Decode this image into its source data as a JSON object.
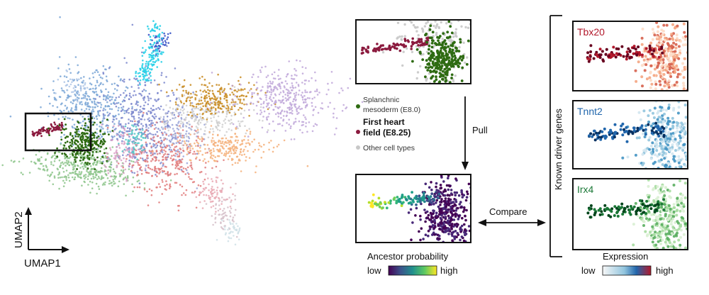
{
  "umap": {
    "x_axis_label": "UMAP1",
    "y_axis_label": "UMAP2"
  },
  "legend": {
    "items": [
      {
        "label": "Splanchnic mesoderm (E8.0)",
        "color": "#2e6b12"
      },
      {
        "label_line1": "First heart",
        "label_line2": "field (E8.25)",
        "color": "#8b1a3e",
        "bold": true
      },
      {
        "label": "Other cell types",
        "color": "#c8c8c8"
      }
    ]
  },
  "arrows": {
    "pull_label": "Pull",
    "compare_label": "Compare"
  },
  "ancestor_panel": {
    "title": "Ancestor probability",
    "low": "low",
    "high": "high"
  },
  "driver_genes": {
    "section_label": "Known driver genes",
    "genes": [
      {
        "name": "Tbx20",
        "color": "#b2182b"
      },
      {
        "name": "Tnnt2",
        "color": "#2166ac"
      },
      {
        "name": "Irx4",
        "color": "#1b7837"
      }
    ],
    "expression_title": "Expression",
    "low": "low",
    "high": "high"
  },
  "colors": {
    "splanchnic": "#2e6b12",
    "first_heart_field": "#8b1a3e",
    "other": "#c8c8c8"
  }
}
